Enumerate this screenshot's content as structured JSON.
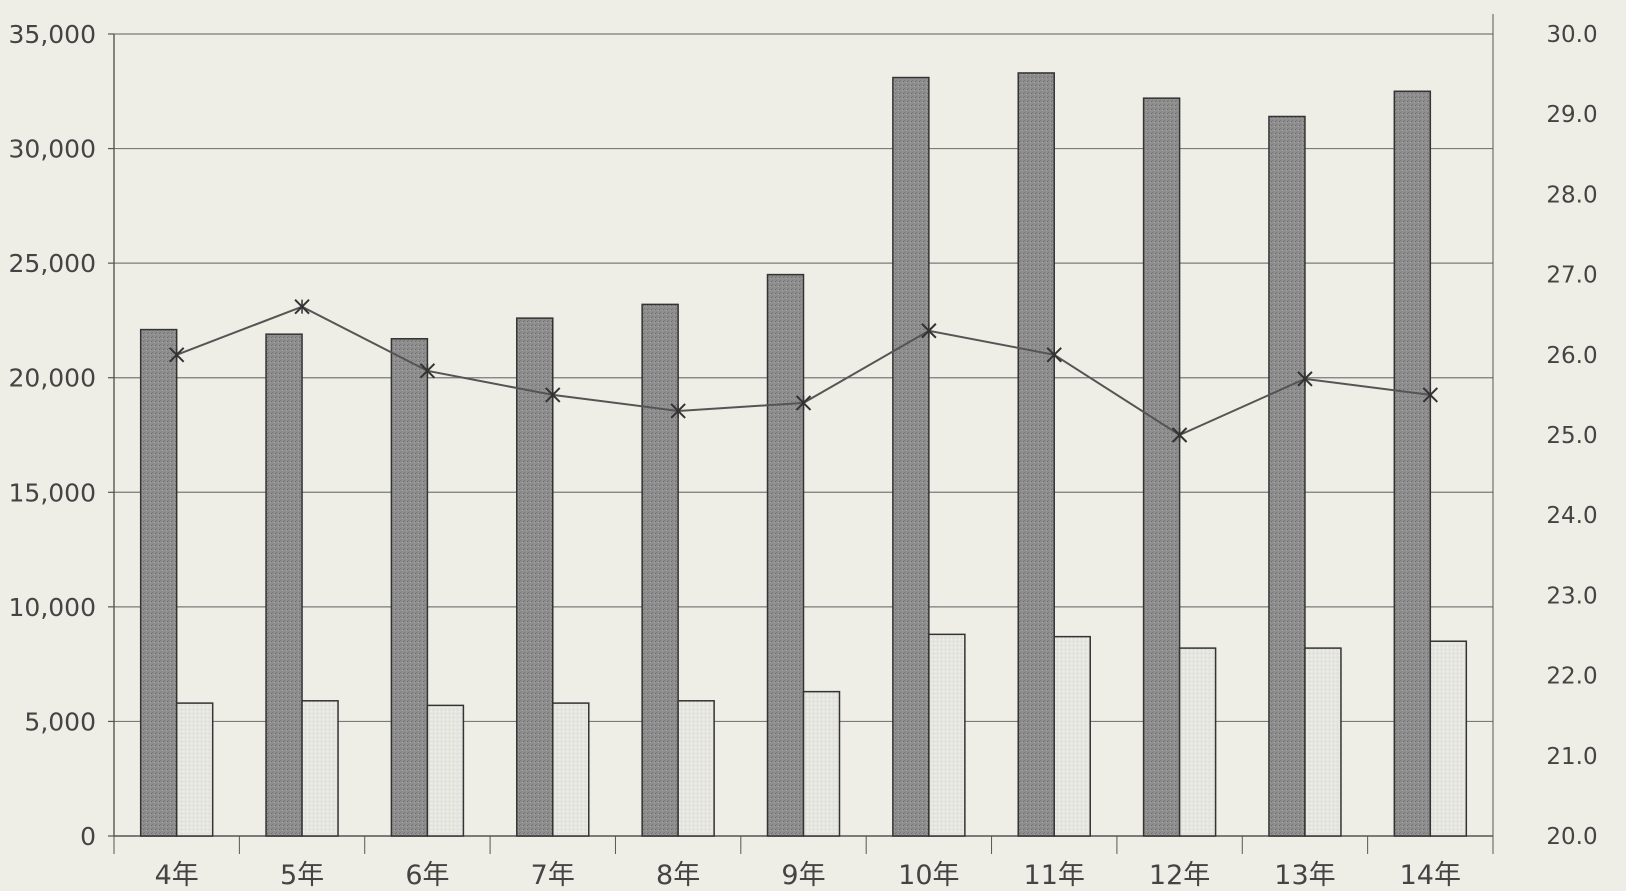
{
  "chart_data": {
    "type": "bar",
    "categories": [
      "4年",
      "5年",
      "6年",
      "7年",
      "8年",
      "9年",
      "10年",
      "11年",
      "12年",
      "13年",
      "14年"
    ],
    "series": [
      {
        "type": "bar",
        "axis": "left",
        "values": [
          22100,
          21900,
          21700,
          22600,
          23200,
          24500,
          33100,
          33300,
          32200,
          31400,
          32500
        ]
      },
      {
        "type": "bar",
        "axis": "left",
        "values": [
          5800,
          5900,
          5700,
          5800,
          5900,
          6300,
          8800,
          8700,
          8200,
          8200,
          8500
        ]
      },
      {
        "type": "line",
        "axis": "right",
        "values": [
          26.0,
          26.6,
          25.8,
          25.5,
          25.3,
          25.4,
          26.3,
          26.0,
          25.0,
          25.7,
          25.5
        ]
      }
    ],
    "y_left": {
      "min": 0,
      "max": 35000,
      "ticks": [
        0,
        5000,
        10000,
        15000,
        20000,
        25000,
        30000,
        35000
      ],
      "tick_labels": [
        "0",
        "5,000",
        "10,000",
        "15,000",
        "20,000",
        "25,000",
        "30,000",
        "35,000"
      ]
    },
    "y_right": {
      "min": 20.0,
      "max": 30.0,
      "ticks": [
        20,
        21,
        22,
        23,
        24,
        25,
        26,
        27,
        28,
        29,
        30
      ],
      "tick_labels": [
        "20.0",
        "21.0",
        "22.0",
        "23.0",
        "24.0",
        "25.0",
        "26.0",
        "27.0",
        "28.0",
        "29.0",
        "30.0"
      ]
    },
    "grid": true,
    "legend": "none",
    "colors": {
      "bar_dark": "#8e8e8e",
      "bar_light": "#e6e6e1",
      "line": "#555555",
      "grid": "#7a7a7a",
      "axis": "#555555",
      "text": "#444444",
      "background": "#efeee6"
    }
  }
}
